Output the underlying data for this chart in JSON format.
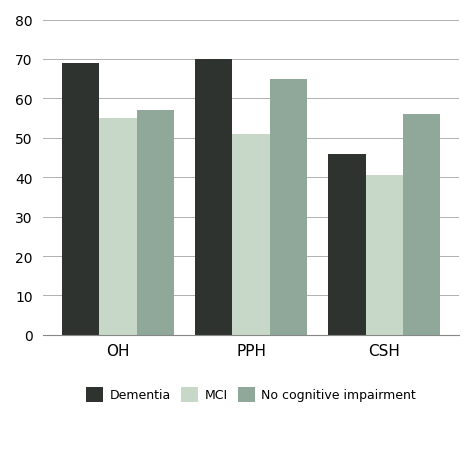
{
  "categories": [
    "OH",
    "PPH",
    "CSH"
  ],
  "series": {
    "Dementia": [
      69,
      70,
      46
    ],
    "MCI": [
      55,
      51,
      40.5
    ],
    "No cognitive impairment": [
      57,
      65,
      56
    ]
  },
  "bar_colors": {
    "Dementia": "#2e3330",
    "MCI": "#c8d8c8",
    "No cognitive impairment": "#8fa89a"
  },
  "ylim": [
    0,
    80
  ],
  "yticks": [
    0,
    10,
    20,
    30,
    40,
    50,
    60,
    70,
    80
  ],
  "background_color": "#ffffff",
  "grid_color": "#b0b0b0",
  "bar_width": 0.28,
  "legend_ncol": 3
}
